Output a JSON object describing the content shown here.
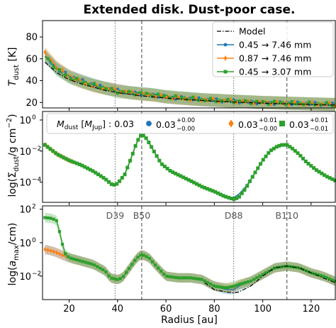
{
  "figure": {
    "title": "Extended disk. Dust-poor case.",
    "xlabel": "Radius [au]",
    "xticks": [
      "20",
      "40",
      "60",
      "80",
      "100",
      "120"
    ],
    "ring_labels": [
      "D39",
      "B50",
      "D88",
      "B110"
    ],
    "colors": {
      "blue": "#1f77b4",
      "orange": "#ff7f0e",
      "green": "#2ca02c",
      "model": "#000000"
    }
  },
  "chart_data": [
    {
      "type": "line",
      "panel": "temperature",
      "ylabel": "T_dust [K]",
      "ylim": [
        15,
        95
      ],
      "yticks": [
        "20",
        "40",
        "60",
        "80"
      ],
      "legend_position": "top-right",
      "legend": [
        "Model",
        "0.45 → 7.46 mm",
        "0.87 → 7.46 mm",
        "0.45 → 3.07 mm"
      ],
      "x": [
        10,
        15,
        20,
        25,
        30,
        35,
        40,
        45,
        50,
        55,
        60,
        65,
        70,
        75,
        80,
        85,
        90,
        95,
        100,
        105,
        110,
        115,
        120,
        125,
        130
      ],
      "series": [
        {
          "name": "Model",
          "values": [
            57,
            47,
            41,
            37,
            34,
            31,
            29,
            27.5,
            26,
            25,
            24,
            23.2,
            22.5,
            21.8,
            21.2,
            20.7,
            20.2,
            19.8,
            19.4,
            19,
            18.7,
            18.4,
            18.1,
            17.8,
            17.6
          ]
        },
        {
          "name": "0.45 → 7.46 mm",
          "values": [
            62,
            51,
            44,
            40,
            36,
            33,
            31,
            29,
            28,
            27,
            25,
            24,
            23.5,
            22.5,
            22,
            21.5,
            21,
            20.5,
            20,
            19.6,
            19.2,
            19,
            18.6,
            18.3,
            18
          ]
        },
        {
          "name": "0.87 → 7.46 mm",
          "values": [
            65,
            52,
            44,
            39,
            35,
            33,
            31,
            29,
            27.5,
            26.5,
            25,
            24,
            23,
            22.5,
            22,
            21.5,
            21,
            20.5,
            20,
            19.7,
            19.3,
            19,
            18.7,
            18.4,
            18.1
          ]
        },
        {
          "name": "0.45 → 3.07 mm",
          "values": [
            63,
            50,
            43,
            39,
            36,
            33,
            30,
            29,
            28,
            27,
            25.5,
            24.5,
            23.5,
            22.5,
            22,
            21.5,
            21,
            20.5,
            20,
            19.8,
            19.4,
            19.1,
            18.8,
            18.5,
            18.2
          ]
        }
      ]
    },
    {
      "type": "line",
      "panel": "surface_density",
      "ylabel": "log(Σ_dust / g cm^-2)",
      "ylim_log": [
        -5.3,
        0.55
      ],
      "yticks": [
        "10^0",
        "10^-2",
        "10^-4"
      ],
      "legend_position": "top",
      "legend": [
        "M_dust [M_Jup] : 0.03",
        "0.03 +0.00 −0.00",
        "0.03 +0.01 −0.00",
        "0.03 +0.01 −0.01"
      ],
      "x": [
        10,
        15,
        20,
        25,
        30,
        35,
        38,
        40,
        43,
        46,
        48,
        50,
        52,
        55,
        58,
        62,
        66,
        70,
        75,
        80,
        84,
        88,
        90,
        93,
        96,
        100,
        103,
        106,
        108,
        110,
        112,
        115,
        118,
        122,
        126,
        130
      ],
      "series": [
        {
          "name": "blue",
          "log_values": [
            -1.6,
            -2.2,
            -2.6,
            -2.9,
            -3.3,
            -3.8,
            -4.2,
            -4.1,
            -3.5,
            -2.3,
            -1.4,
            -0.9,
            -1.2,
            -2,
            -2.8,
            -3.3,
            -3.6,
            -3.9,
            -4.3,
            -4.6,
            -4.9,
            -5.0,
            -4.8,
            -4.3,
            -3.6,
            -2.6,
            -2.0,
            -1.7,
            -1.6,
            -1.6,
            -1.8,
            -2.2,
            -2.7,
            -3.2,
            -3.6,
            -3.9
          ]
        },
        {
          "name": "orange",
          "log_values": [
            -1.6,
            -2.2,
            -2.6,
            -2.9,
            -3.3,
            -3.8,
            -4.2,
            -4.1,
            -3.5,
            -2.3,
            -1.4,
            -0.9,
            -1.2,
            -2,
            -2.8,
            -3.3,
            -3.6,
            -3.9,
            -4.3,
            -4.6,
            -4.9,
            -5.1,
            -5.0,
            -4.4,
            -3.6,
            -2.6,
            -2.0,
            -1.7,
            -1.6,
            -1.6,
            -1.8,
            -2.2,
            -2.7,
            -3.2,
            -3.6,
            -3.9
          ]
        },
        {
          "name": "green",
          "log_values": [
            -1.6,
            -2.2,
            -2.6,
            -2.9,
            -3.3,
            -3.8,
            -4.2,
            -4.1,
            -3.5,
            -2.3,
            -1.4,
            -0.9,
            -1.2,
            -2,
            -2.8,
            -3.3,
            -3.6,
            -3.9,
            -4.3,
            -4.6,
            -4.9,
            -5.1,
            -5.0,
            -4.4,
            -3.6,
            -2.6,
            -2.0,
            -1.7,
            -1.6,
            -1.6,
            -1.8,
            -2.2,
            -2.7,
            -3.2,
            -3.6,
            -3.9
          ]
        }
      ]
    },
    {
      "type": "line",
      "panel": "max_grain_size",
      "ylabel": "log(a_max / cm)",
      "ylim_log": [
        -3.4,
        2.2
      ],
      "yticks": [
        "10^2",
        "10^0",
        "10^-2"
      ],
      "x": [
        10,
        13,
        15,
        18,
        20,
        25,
        30,
        35,
        37,
        40,
        42,
        45,
        48,
        50,
        53,
        56,
        60,
        65,
        70,
        75,
        80,
        85,
        88,
        90,
        95,
        100,
        105,
        110,
        115,
        120,
        125,
        130
      ],
      "series": [
        {
          "name": "Model",
          "log_values": [
            null,
            null,
            null,
            null,
            null,
            null,
            null,
            null,
            null,
            null,
            null,
            null,
            null,
            null,
            null,
            null,
            null,
            null,
            null,
            -2.3,
            -2.8,
            -2.95,
            -3.0,
            -2.95,
            -2.6,
            -2.0,
            -1.5,
            -1.4,
            -1.5,
            -1.8,
            -2.1,
            -2.4
          ]
        },
        {
          "name": "blue",
          "log_values": [
            -0.4,
            -0.5,
            -0.6,
            -0.8,
            -0.9,
            -1.1,
            -1.3,
            -1.7,
            -2.1,
            -2.2,
            -2.1,
            -1.5,
            -0.9,
            -0.7,
            -0.9,
            -1.4,
            -2.0,
            -2.1,
            -2.1,
            -2.2,
            -2.6,
            -2.8,
            -2.8,
            -2.6,
            -2.3,
            -1.9,
            -1.5,
            -1.4,
            -1.5,
            -1.8,
            -2.0,
            -2.3
          ]
        },
        {
          "name": "orange",
          "log_values": [
            -0.4,
            -0.5,
            -0.6,
            -0.8,
            -0.9,
            -1.1,
            -1.3,
            -1.7,
            -2.1,
            -2.2,
            -2.1,
            -1.5,
            -0.9,
            -0.7,
            -0.9,
            -1.4,
            -2.0,
            -2.1,
            -2.1,
            -2.2,
            -2.6,
            -2.7,
            -2.7,
            -2.5,
            -2.3,
            -1.9,
            -1.5,
            -1.4,
            -1.5,
            -1.8,
            -2.0,
            -2.3
          ]
        },
        {
          "name": "green",
          "log_values": [
            1.5,
            1.45,
            1.3,
            -0.6,
            -0.9,
            -1.1,
            -1.3,
            -1.7,
            -2.1,
            -2.2,
            -2.1,
            -1.5,
            -0.9,
            -0.7,
            -0.9,
            -1.4,
            -2.0,
            -2.1,
            -2.1,
            -2.2,
            -2.6,
            -2.7,
            -2.6,
            -2.5,
            -2.3,
            -1.9,
            -1.5,
            -1.4,
            -1.5,
            -1.8,
            -2.0,
            -2.3
          ]
        }
      ]
    }
  ],
  "ring_positions_au": [
    39,
    50,
    88,
    110
  ]
}
